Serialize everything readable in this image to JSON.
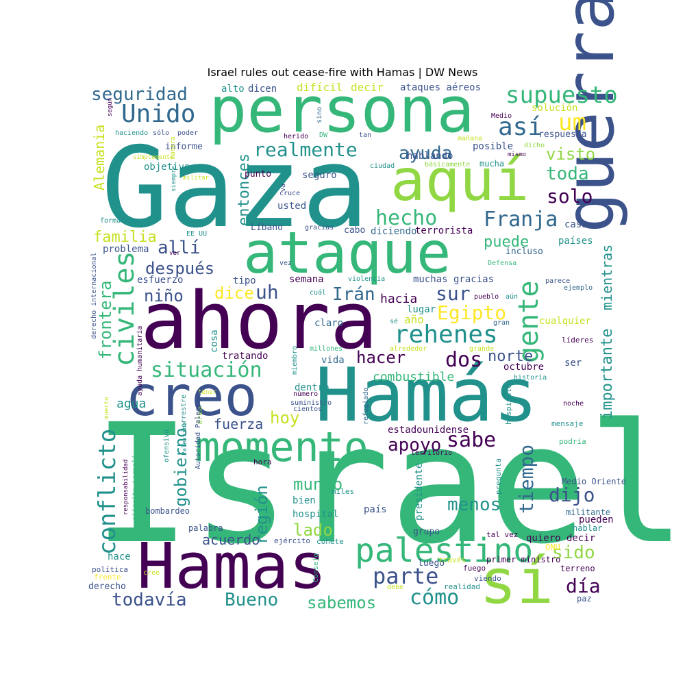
{
  "title": "Israel rules out cease-fire with Hamas | DW News",
  "palette": {
    "dark": "#440154",
    "indigo": "#3b528b",
    "blue": "#31688e",
    "teal": "#21918c",
    "green": "#35b779",
    "lightgreen": "#5ec962",
    "lime": "#90d743",
    "yellow": "#fde725",
    "olive": "#c8e020"
  },
  "words": [
    {
      "text": "Israel",
      "c": "green"
    },
    {
      "text": "Gaza",
      "c": "teal"
    },
    {
      "text": "persona",
      "c": "green"
    },
    {
      "text": "ahora",
      "c": "dark"
    },
    {
      "text": "Hamás",
      "c": "teal"
    },
    {
      "text": "Hamas",
      "c": "dark"
    },
    {
      "text": "aquí",
      "c": "lime"
    },
    {
      "text": "ataque",
      "c": "green"
    },
    {
      "text": "guerra",
      "c": "indigo"
    },
    {
      "text": "creo",
      "c": "indigo"
    },
    {
      "text": "sí",
      "c": "lime"
    },
    {
      "text": "momento",
      "c": "green"
    },
    {
      "text": "palestino",
      "c": "green"
    },
    {
      "text": "supuesto",
      "c": "green"
    },
    {
      "text": "Unido",
      "c": "blue"
    },
    {
      "text": "seguridad",
      "c": "blue"
    },
    {
      "text": "realmente",
      "c": "teal"
    },
    {
      "text": "así",
      "c": "blue"
    },
    {
      "text": "um",
      "c": "yellow"
    },
    {
      "text": "ayuda",
      "c": "blue"
    },
    {
      "text": "visto",
      "c": "lime"
    },
    {
      "text": "toda",
      "c": "green"
    },
    {
      "text": "solo",
      "c": "dark"
    },
    {
      "text": "hecho",
      "c": "green"
    },
    {
      "text": "Franja",
      "c": "blue"
    },
    {
      "text": "allí",
      "c": "indigo"
    },
    {
      "text": "familia",
      "c": "olive"
    },
    {
      "text": "puede",
      "c": "green"
    },
    {
      "text": "después",
      "c": "indigo"
    },
    {
      "text": "civiles",
      "c": "green"
    },
    {
      "text": "gente",
      "c": "green"
    },
    {
      "text": "uh",
      "c": "indigo"
    },
    {
      "text": "dice",
      "c": "yellow"
    },
    {
      "text": "niño",
      "c": "indigo"
    },
    {
      "text": "Irán",
      "c": "blue"
    },
    {
      "text": "sur",
      "c": "indigo"
    },
    {
      "text": "Egipto",
      "c": "yellow"
    },
    {
      "text": "rehenes",
      "c": "teal"
    },
    {
      "text": "frontera",
      "c": "green"
    },
    {
      "text": "situación",
      "c": "green"
    },
    {
      "text": "hacer",
      "c": "dark"
    },
    {
      "text": "dos",
      "c": "dark"
    },
    {
      "text": "norte",
      "c": "indigo"
    },
    {
      "text": "sabe",
      "c": "dark"
    },
    {
      "text": "apoyo",
      "c": "dark"
    },
    {
      "text": "conflicto",
      "c": "teal"
    },
    {
      "text": "gobierno",
      "c": "teal"
    },
    {
      "text": "región",
      "c": "teal"
    },
    {
      "text": "mundo",
      "c": "green"
    },
    {
      "text": "menos",
      "c": "teal"
    },
    {
      "text": "tiempo",
      "c": "blue"
    },
    {
      "text": "dijo",
      "c": "indigo"
    },
    {
      "text": "lado",
      "c": "lime"
    },
    {
      "text": "parte",
      "c": "indigo"
    },
    {
      "text": "sido",
      "c": "lime"
    },
    {
      "text": "día",
      "c": "dark"
    },
    {
      "text": "cómo",
      "c": "teal"
    },
    {
      "text": "Bueno",
      "c": "teal"
    },
    {
      "text": "todavía",
      "c": "indigo"
    },
    {
      "text": "sabemos",
      "c": "green"
    },
    {
      "text": "hoy",
      "c": "olive"
    },
    {
      "text": "fuerza",
      "c": "indigo"
    },
    {
      "text": "agua",
      "c": "teal"
    },
    {
      "text": "acuerdo",
      "c": "indigo"
    },
    {
      "text": "importante",
      "c": "teal"
    },
    {
      "text": "mientras",
      "c": "teal"
    },
    {
      "text": "Alemania",
      "c": "olive"
    },
    {
      "text": "entonces",
      "c": "teal"
    },
    {
      "text": "combustible",
      "c": "green"
    },
    {
      "text": "hacia",
      "c": "dark"
    },
    {
      "text": "año",
      "c": "olive"
    },
    {
      "text": "lugar",
      "c": "teal"
    },
    {
      "text": "tratando",
      "c": "dark"
    },
    {
      "text": "dentro",
      "c": "teal"
    },
    {
      "text": "hablando",
      "c": "indigo"
    },
    {
      "text": "posible",
      "c": "indigo"
    },
    {
      "text": "decir",
      "c": "olive"
    },
    {
      "text": "difícil",
      "c": "olive"
    },
    {
      "text": "ataques aéreos",
      "c": "indigo"
    },
    {
      "text": "dicen",
      "c": "indigo"
    },
    {
      "text": "alto",
      "c": "teal"
    },
    {
      "text": "solución",
      "c": "olive"
    },
    {
      "text": "respuesta",
      "c": "indigo"
    },
    {
      "text": "informe",
      "c": "indigo"
    },
    {
      "text": "objetivo",
      "c": "teal"
    },
    {
      "text": "punto",
      "c": "dark"
    },
    {
      "text": "seguro",
      "c": "indigo"
    },
    {
      "text": "usted",
      "c": "indigo"
    },
    {
      "text": "Líbano",
      "c": "indigo"
    },
    {
      "text": "cabo",
      "c": "indigo"
    },
    {
      "text": "diciendo",
      "c": "blue"
    },
    {
      "text": "terrorista",
      "c": "dark"
    },
    {
      "text": "problema",
      "c": "indigo"
    },
    {
      "text": "esfuerzo",
      "c": "indigo"
    },
    {
      "text": "semana",
      "c": "dark"
    },
    {
      "text": "muchas gracias",
      "c": "indigo"
    },
    {
      "text": "tipo",
      "c": "indigo"
    },
    {
      "text": "claro",
      "c": "blue"
    },
    {
      "text": "cosa",
      "c": "teal"
    },
    {
      "text": "vida",
      "c": "blue"
    },
    {
      "text": "octubre",
      "c": "dark"
    },
    {
      "text": "cualquier",
      "c": "olive"
    },
    {
      "text": "ser",
      "c": "indigo"
    },
    {
      "text": "casa",
      "c": "indigo"
    },
    {
      "text": "países",
      "c": "teal"
    },
    {
      "text": "incluso",
      "c": "blue"
    },
    {
      "text": "estadounidense",
      "c": "dark"
    },
    {
      "text": "presidente",
      "c": "teal"
    },
    {
      "text": "quiero decir",
      "c": "dark"
    },
    {
      "text": "pueden",
      "c": "dark"
    },
    {
      "text": "hospital",
      "c": "teal"
    },
    {
      "text": "bien",
      "c": "teal"
    },
    {
      "text": "país",
      "c": "indigo"
    },
    {
      "text": "hace",
      "c": "teal"
    },
    {
      "text": "derecho",
      "c": "indigo"
    },
    {
      "text": "luego",
      "c": "indigo"
    },
    {
      "text": "grupo",
      "c": "indigo"
    },
    {
      "text": "Medio Oriente",
      "c": "indigo"
    },
    {
      "text": "militante",
      "c": "blue"
    },
    {
      "text": "hablar",
      "c": "teal"
    },
    {
      "text": "terreno",
      "c": "dark"
    },
    {
      "text": "paz",
      "c": "indigo"
    },
    {
      "text": "bombardeo",
      "c": "indigo"
    },
    {
      "text": "palabra",
      "c": "indigo"
    },
    {
      "text": "hora",
      "c": "dark"
    },
    {
      "text": "miles",
      "c": "teal"
    },
    {
      "text": "ejército",
      "c": "indigo"
    },
    {
      "text": "cohete",
      "c": "teal"
    },
    {
      "text": "primer ministro",
      "c": "dark"
    },
    {
      "text": "fuego",
      "c": "dark"
    },
    {
      "text": "viendo",
      "c": "indigo"
    },
    {
      "text": "realidad",
      "c": "teal"
    },
    {
      "text": "debe",
      "c": "olive"
    },
    {
      "text": "través",
      "c": "olive"
    },
    {
      "text": "política",
      "c": "indigo"
    },
    {
      "text": "frente",
      "c": "yellow"
    },
    {
      "text": "cree",
      "c": "olive"
    },
    {
      "text": "ONU",
      "c": "yellow"
    },
    {
      "text": "tal vez",
      "c": "dark"
    },
    {
      "text": "mensaje",
      "c": "teal"
    },
    {
      "text": "podría",
      "c": "green"
    },
    {
      "text": "noche",
      "c": "dark"
    },
    {
      "text": "historia",
      "c": "teal"
    },
    {
      "text": "grande",
      "c": "olive"
    },
    {
      "text": "líderes",
      "c": "dark"
    },
    {
      "text": "gran",
      "c": "blue"
    },
    {
      "text": "pueblo",
      "c": "dark"
    },
    {
      "text": "aún",
      "c": "teal"
    },
    {
      "text": "ejemplo",
      "c": "blue"
    },
    {
      "text": "parece",
      "c": "indigo"
    },
    {
      "text": "Defensa",
      "c": "green"
    },
    {
      "text": "vez",
      "c": "indigo"
    },
    {
      "text": "violencia",
      "c": "teal"
    },
    {
      "text": "cuál",
      "c": "teal"
    },
    {
      "text": "sé",
      "c": "teal"
    },
    {
      "text": "millones",
      "c": "green"
    },
    {
      "text": "alrededor",
      "c": "olive"
    },
    {
      "text": "miembro",
      "c": "teal"
    },
    {
      "text": "número",
      "c": "dark"
    },
    {
      "text": "suministro",
      "c": "indigo"
    },
    {
      "text": "cientos",
      "c": "indigo"
    },
    {
      "text": "refugiado",
      "c": "blue"
    },
    {
      "text": "territorio",
      "c": "dark"
    },
    {
      "text": "pregunta",
      "c": "teal"
    },
    {
      "text": "hospitales",
      "c": "teal"
    },
    {
      "text": "tener",
      "c": "olive"
    },
    {
      "text": "área",
      "c": "lime"
    },
    {
      "text": "terrestre",
      "c": "teal"
    },
    {
      "text": "ofensiva",
      "c": "teal"
    },
    {
      "text": "Palestina",
      "c": "teal"
    },
    {
      "text": "Autoridad Palestina",
      "c": "indigo"
    },
    {
      "text": "responsabilidad",
      "c": "dark"
    },
    {
      "text": "ejército israelí",
      "c": "green"
    },
    {
      "text": "Consejo",
      "c": "green"
    },
    {
      "text": "muerto",
      "c": "olive"
    },
    {
      "text": "ayuda humanitaria",
      "c": "dark"
    },
    {
      "text": "derecho internacional",
      "c": "indigo"
    },
    {
      "text": "EE UU",
      "c": "teal"
    },
    {
      "text": "forma",
      "c": "teal"
    },
    {
      "text": "ver",
      "c": "dark"
    },
    {
      "text": "militar",
      "c": "olive"
    },
    {
      "text": "simplemente",
      "c": "olive"
    },
    {
      "text": "haciendo",
      "c": "teal"
    },
    {
      "text": "poder",
      "c": "indigo"
    },
    {
      "text": "sólo",
      "c": "indigo"
    },
    {
      "text": "según",
      "c": "dark"
    },
    {
      "text": "manera",
      "c": "olive"
    },
    {
      "text": "siempre",
      "c": "teal"
    },
    {
      "text": "herido",
      "c": "dark"
    },
    {
      "text": "cruce",
      "c": "indigo"
    },
    {
      "text": "gracias",
      "c": "indigo"
    },
    {
      "text": "DW",
      "c": "green"
    },
    {
      "text": "tan",
      "c": "indigo"
    },
    {
      "text": "va",
      "c": "indigo"
    },
    {
      "text": "sino",
      "c": "blue"
    },
    {
      "text": "ciudad",
      "c": "teal"
    },
    {
      "text": "mucha",
      "c": "teal"
    },
    {
      "text": "mañana",
      "c": "olive"
    },
    {
      "text": "dicho",
      "c": "lime"
    },
    {
      "text": "básicamente",
      "c": "lime"
    },
    {
      "text": "mismo",
      "c": "dark"
    },
    {
      "text": "Medio",
      "c": "dark"
    }
  ]
}
